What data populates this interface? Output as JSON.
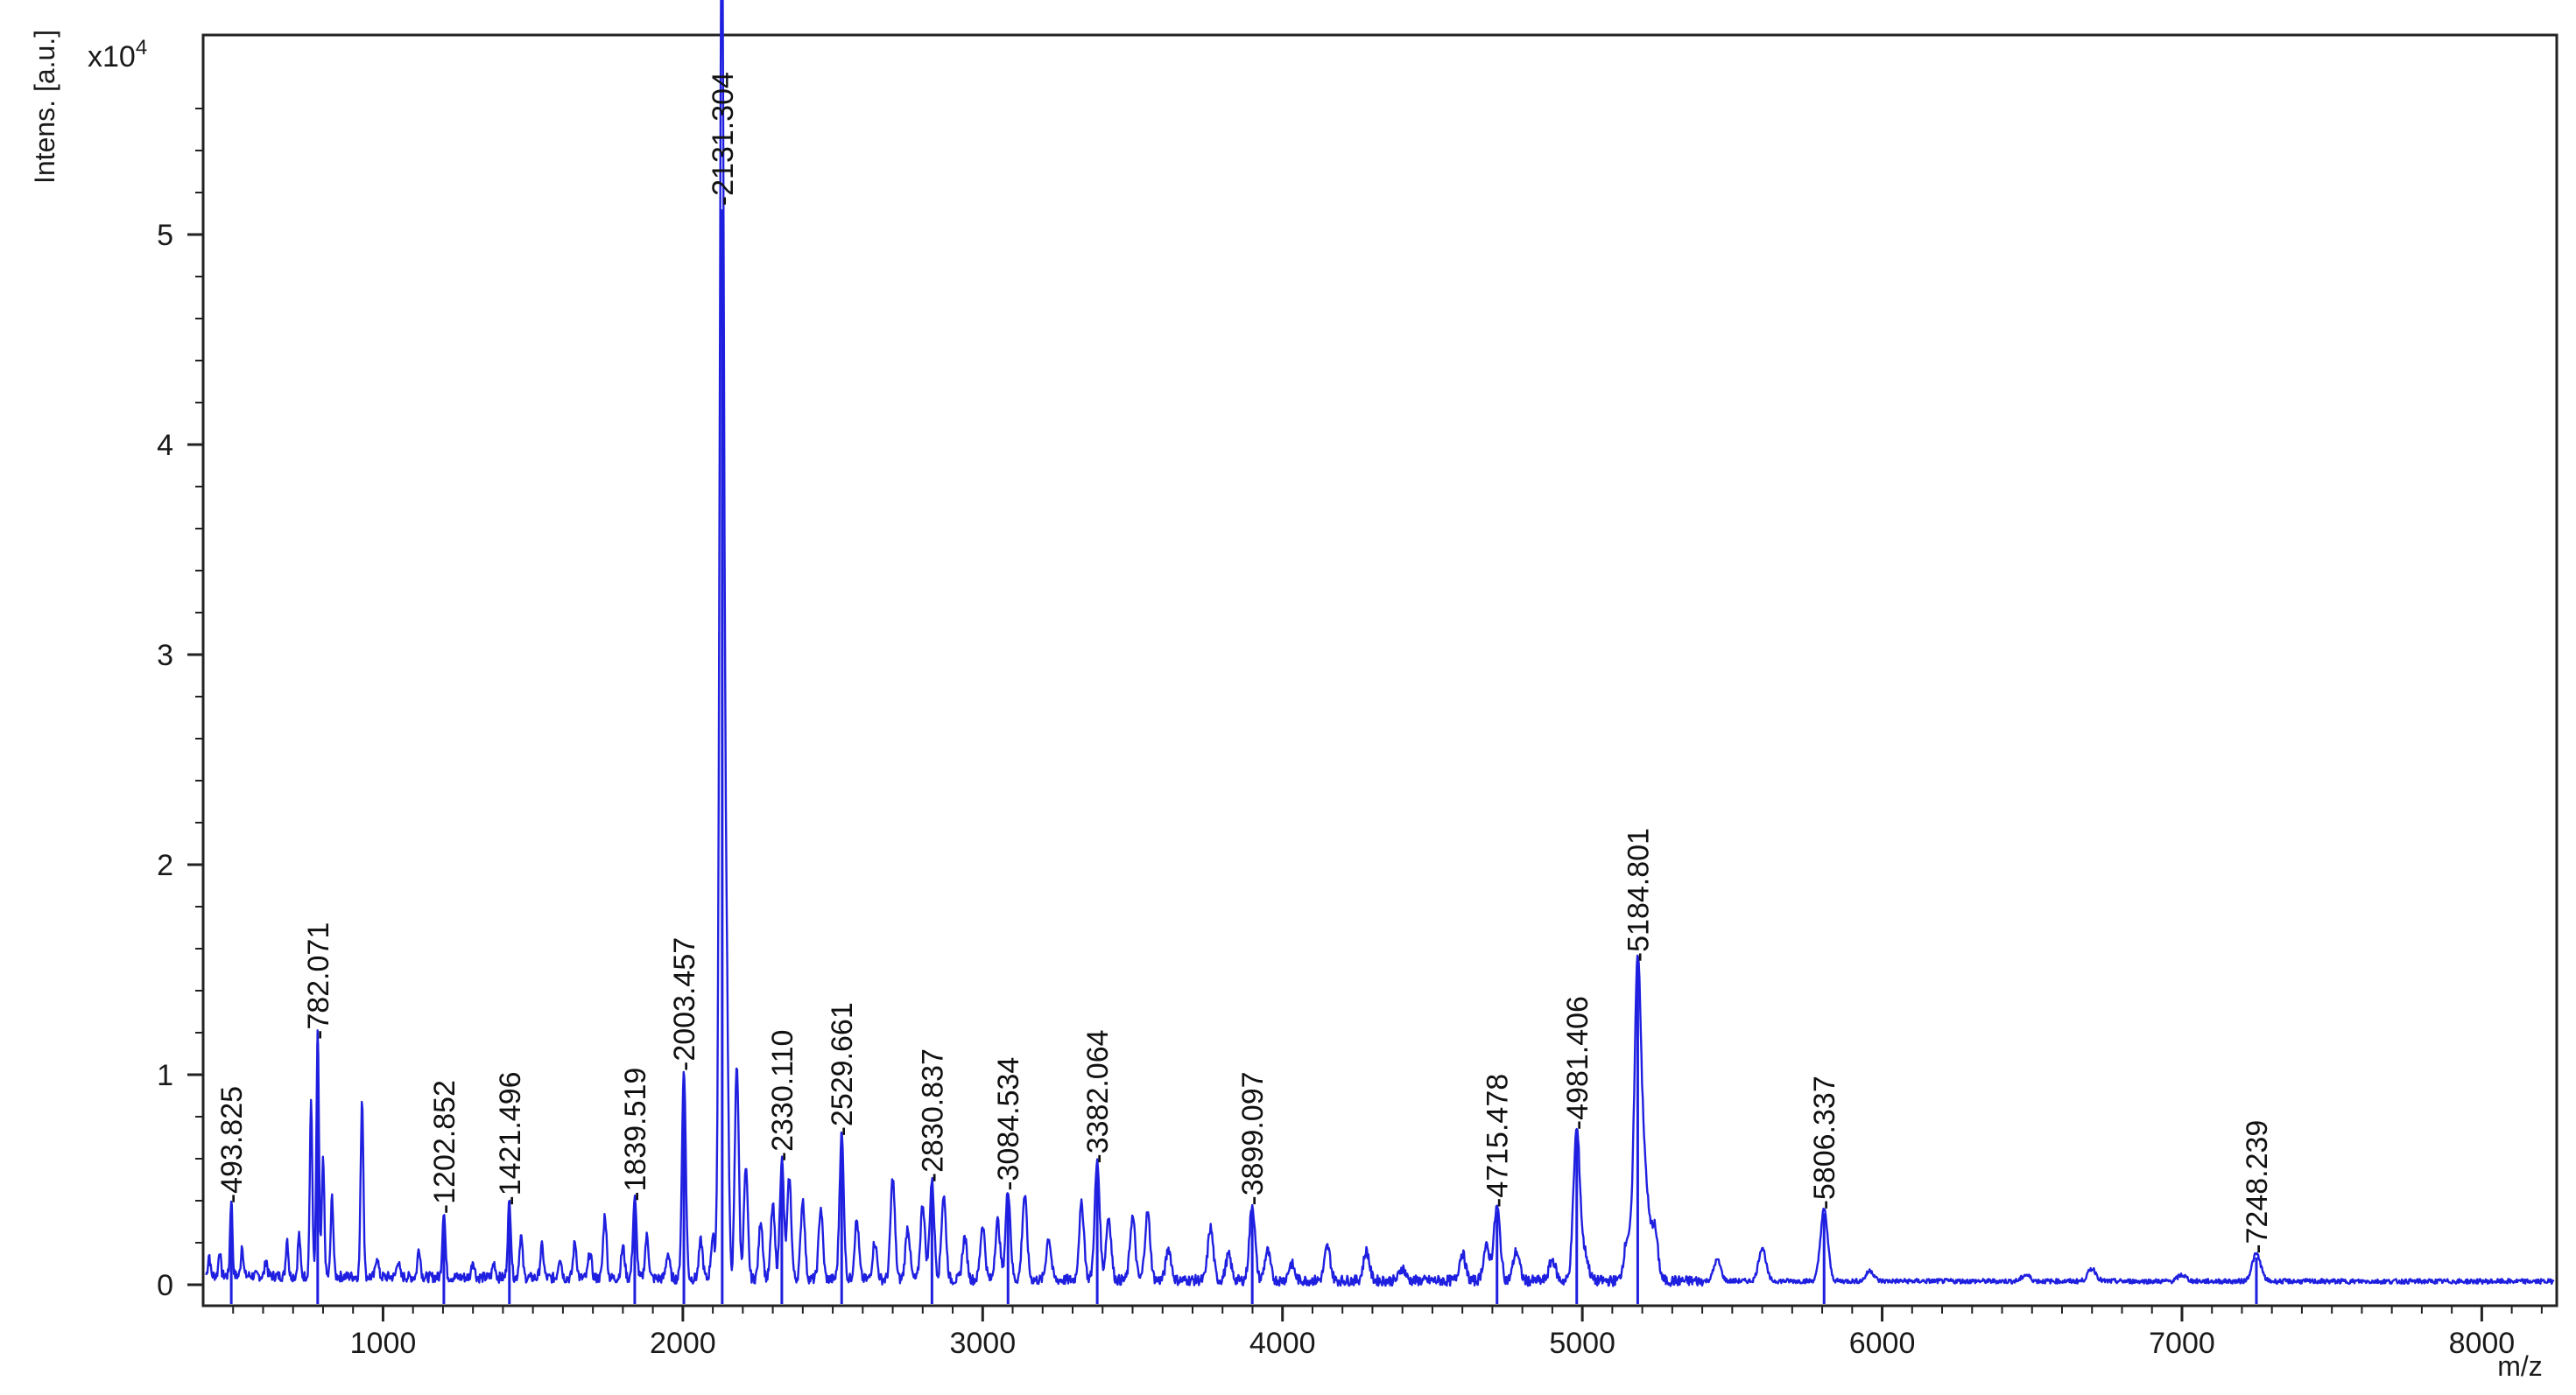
{
  "colors": {
    "trace": "#1f1fe0",
    "axis": "#222222",
    "background": "#ffffff"
  },
  "chart_data": {
    "type": "line",
    "title": "",
    "xlabel": "m/z",
    "ylabel": "Intens. [a.u.]",
    "y_multiplier_label": "x10",
    "y_multiplier_exponent": "4",
    "xlim": [
      400,
      8250
    ],
    "ylim": [
      -0.1,
      5.95
    ],
    "x_ticks": [
      1000,
      2000,
      3000,
      4000,
      5000,
      6000,
      7000,
      8000
    ],
    "x_tick_labels": [
      "1000",
      "2000",
      "3000",
      "4000",
      "5000",
      "6000",
      "7000",
      "8000"
    ],
    "y_ticks": [
      0,
      1,
      2,
      3,
      4,
      5
    ],
    "y_tick_labels": [
      "0",
      "1",
      "2",
      "3",
      "4",
      "5"
    ],
    "grid": false,
    "labeled_peaks": [
      {
        "x": 493.825,
        "y": 0.37,
        "label": "493.825"
      },
      {
        "x": 782.071,
        "y": 1.15,
        "label": "782.071"
      },
      {
        "x": 1202.852,
        "y": 0.32,
        "label": "1202.852"
      },
      {
        "x": 1421.496,
        "y": 0.36,
        "label": "1421.496"
      },
      {
        "x": 1839.519,
        "y": 0.38,
        "label": "1839.519"
      },
      {
        "x": 2003.457,
        "y": 1.0,
        "label": "2003.457"
      },
      {
        "x": 2131.304,
        "y": 5.12,
        "label": "2131.304"
      },
      {
        "x": 2330.11,
        "y": 0.57,
        "label": "2330.110"
      },
      {
        "x": 2529.661,
        "y": 0.69,
        "label": "2529.661"
      },
      {
        "x": 2830.837,
        "y": 0.47,
        "label": "2830.837"
      },
      {
        "x": 3084.534,
        "y": 0.43,
        "label": "3084.534"
      },
      {
        "x": 3382.064,
        "y": 0.56,
        "label": "3382.064"
      },
      {
        "x": 3899.097,
        "y": 0.36,
        "label": "3899.097"
      },
      {
        "x": 4715.478,
        "y": 0.35,
        "label": "4715.478"
      },
      {
        "x": 4981.406,
        "y": 0.72,
        "label": "4981.406"
      },
      {
        "x": 5184.801,
        "y": 1.52,
        "label": "5184.801"
      },
      {
        "x": 5806.337,
        "y": 0.34,
        "label": "5806.337"
      },
      {
        "x": 7248.239,
        "y": 0.13,
        "label": "7248.239"
      }
    ],
    "unlabeled_peaks": [
      {
        "x": 420,
        "y": 0.1
      },
      {
        "x": 455,
        "y": 0.12
      },
      {
        "x": 530,
        "y": 0.15
      },
      {
        "x": 610,
        "y": 0.08
      },
      {
        "x": 680,
        "y": 0.18
      },
      {
        "x": 720,
        "y": 0.2
      },
      {
        "x": 760,
        "y": 0.82
      },
      {
        "x": 800,
        "y": 0.55
      },
      {
        "x": 830,
        "y": 0.38
      },
      {
        "x": 930,
        "y": 0.85
      },
      {
        "x": 980,
        "y": 0.1
      },
      {
        "x": 1050,
        "y": 0.08
      },
      {
        "x": 1120,
        "y": 0.14
      },
      {
        "x": 1300,
        "y": 0.08
      },
      {
        "x": 1370,
        "y": 0.07
      },
      {
        "x": 1460,
        "y": 0.2
      },
      {
        "x": 1530,
        "y": 0.15
      },
      {
        "x": 1590,
        "y": 0.1
      },
      {
        "x": 1640,
        "y": 0.17
      },
      {
        "x": 1690,
        "y": 0.12
      },
      {
        "x": 1740,
        "y": 0.3
      },
      {
        "x": 1800,
        "y": 0.15
      },
      {
        "x": 1880,
        "y": 0.2
      },
      {
        "x": 1950,
        "y": 0.12
      },
      {
        "x": 2060,
        "y": 0.18
      },
      {
        "x": 2100,
        "y": 0.2
      },
      {
        "x": 2125,
        "y": 2.02
      },
      {
        "x": 2145,
        "y": 1.45
      },
      {
        "x": 2180,
        "y": 1.02
      },
      {
        "x": 2210,
        "y": 0.52
      },
      {
        "x": 2260,
        "y": 0.28
      },
      {
        "x": 2300,
        "y": 0.35
      },
      {
        "x": 2355,
        "y": 0.48
      },
      {
        "x": 2400,
        "y": 0.38
      },
      {
        "x": 2460,
        "y": 0.34
      },
      {
        "x": 2580,
        "y": 0.28
      },
      {
        "x": 2640,
        "y": 0.18
      },
      {
        "x": 2700,
        "y": 0.48
      },
      {
        "x": 2750,
        "y": 0.25
      },
      {
        "x": 2800,
        "y": 0.36
      },
      {
        "x": 2870,
        "y": 0.4
      },
      {
        "x": 2940,
        "y": 0.2
      },
      {
        "x": 3000,
        "y": 0.26
      },
      {
        "x": 3050,
        "y": 0.28
      },
      {
        "x": 3140,
        "y": 0.4
      },
      {
        "x": 3220,
        "y": 0.2
      },
      {
        "x": 3330,
        "y": 0.36
      },
      {
        "x": 3420,
        "y": 0.3
      },
      {
        "x": 3500,
        "y": 0.3
      },
      {
        "x": 3550,
        "y": 0.32
      },
      {
        "x": 3620,
        "y": 0.15
      },
      {
        "x": 3760,
        "y": 0.25
      },
      {
        "x": 3820,
        "y": 0.12
      },
      {
        "x": 3950,
        "y": 0.14
      },
      {
        "x": 4030,
        "y": 0.08
      },
      {
        "x": 4150,
        "y": 0.16
      },
      {
        "x": 4280,
        "y": 0.14
      },
      {
        "x": 4400,
        "y": 0.06
      },
      {
        "x": 4600,
        "y": 0.13
      },
      {
        "x": 4680,
        "y": 0.16
      },
      {
        "x": 4780,
        "y": 0.14
      },
      {
        "x": 4900,
        "y": 0.1
      },
      {
        "x": 5010,
        "y": 0.12
      },
      {
        "x": 5150,
        "y": 0.2
      },
      {
        "x": 5210,
        "y": 0.45
      },
      {
        "x": 5240,
        "y": 0.26
      },
      {
        "x": 5450,
        "y": 0.1
      },
      {
        "x": 5600,
        "y": 0.16
      },
      {
        "x": 5960,
        "y": 0.05
      },
      {
        "x": 6480,
        "y": 0.03
      },
      {
        "x": 6700,
        "y": 0.06
      },
      {
        "x": 7000,
        "y": 0.03
      }
    ]
  }
}
